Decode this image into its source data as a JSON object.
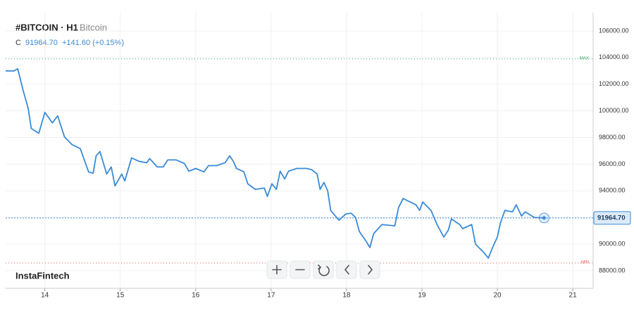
{
  "chart_data": {
    "type": "line",
    "symbol": "#BITCOIN · H1",
    "name": "Bitcoin",
    "close_prefix": "C",
    "change": "+141.60 (+0.15%)",
    "watermark": "InstaFintech",
    "last_price": {
      "value": 91964.7,
      "label": "91964.70"
    },
    "max_line": {
      "value": 103900,
      "label": "MAX",
      "color": "#3aa76d"
    },
    "min_line": {
      "value": 88580,
      "label": "MIN",
      "color": "#e05a5a"
    },
    "xlim": [
      13.48,
      21.27
    ],
    "xticks": [
      14,
      15,
      16,
      17,
      18,
      19,
      20,
      21
    ],
    "ylim": [
      86680,
      107370
    ],
    "yticks": [
      {
        "value": 88000,
        "label": "88000.00"
      },
      {
        "value": 90000,
        "label": "90000.00"
      },
      {
        "value": 92000,
        "label": "92000.00"
      },
      {
        "value": 94000,
        "label": "94000.00"
      },
      {
        "value": 96000,
        "label": "96000.00"
      },
      {
        "value": 98000,
        "label": "98000.00"
      },
      {
        "value": 100000,
        "label": "100000.00"
      },
      {
        "value": 102000,
        "label": "102000.00"
      },
      {
        "value": 104000,
        "label": "104000.00"
      },
      {
        "value": 106000,
        "label": "106000.00"
      }
    ],
    "grid": true,
    "series": [
      {
        "name": "Bitcoin",
        "color": "#3a8ad6",
        "x": [
          13.48,
          13.59,
          13.64,
          13.71,
          13.78,
          13.82,
          13.92,
          14.0,
          14.1,
          14.17,
          14.26,
          14.36,
          14.47,
          14.58,
          14.64,
          14.68,
          14.73,
          14.82,
          14.88,
          14.93,
          15.02,
          15.06,
          15.15,
          15.25,
          15.35,
          15.39,
          15.49,
          15.57,
          15.63,
          15.74,
          15.85,
          15.91,
          16.0,
          16.11,
          16.17,
          16.28,
          16.39,
          16.45,
          16.5,
          16.54,
          16.64,
          16.69,
          16.79,
          16.91,
          16.95,
          17.01,
          17.07,
          17.12,
          17.18,
          17.23,
          17.34,
          17.47,
          17.54,
          17.61,
          17.65,
          17.7,
          17.75,
          17.79,
          17.9,
          17.99,
          18.06,
          18.12,
          18.17,
          18.26,
          18.31,
          18.36,
          18.47,
          18.64,
          18.69,
          18.75,
          18.92,
          18.97,
          19.01,
          19.12,
          19.2,
          19.29,
          19.35,
          19.39,
          19.5,
          19.54,
          19.66,
          19.71,
          19.82,
          19.88,
          19.94,
          20.0,
          20.04,
          20.1,
          20.2,
          20.25,
          20.32,
          20.37,
          20.49,
          20.62
        ],
        "values": [
          103000,
          103000,
          103160,
          101580,
          100160,
          98680,
          98320,
          99890,
          99100,
          99630,
          98050,
          97470,
          97160,
          95420,
          95320,
          96630,
          96950,
          95260,
          95790,
          94370,
          95260,
          94740,
          96470,
          96210,
          96110,
          96420,
          95790,
          95790,
          96320,
          96320,
          96050,
          95470,
          95680,
          95420,
          95890,
          95890,
          96110,
          96630,
          96210,
          95680,
          95420,
          94530,
          94110,
          94210,
          93580,
          94530,
          94110,
          95470,
          94890,
          95470,
          95680,
          95680,
          95580,
          95260,
          94110,
          94630,
          94000,
          92530,
          91790,
          92260,
          92320,
          92000,
          90950,
          90210,
          89740,
          90790,
          91470,
          91370,
          92740,
          93420,
          92950,
          92530,
          93160,
          92530,
          91470,
          90530,
          91050,
          91890,
          91470,
          91160,
          91470,
          90000,
          89370,
          88950,
          89790,
          90530,
          91580,
          92530,
          92420,
          92950,
          92110,
          92420,
          92000,
          91964.7
        ]
      }
    ]
  }
}
